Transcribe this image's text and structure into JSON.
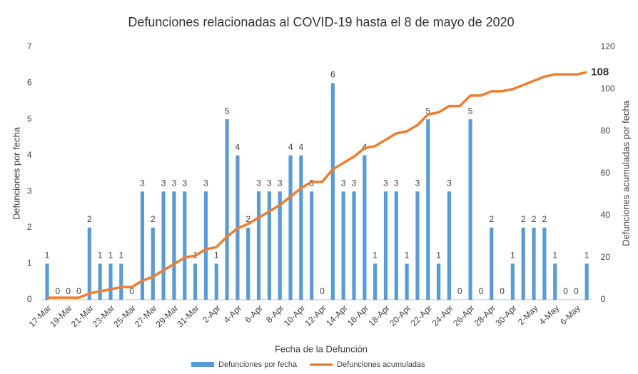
{
  "chart_data": {
    "type": "bar_line",
    "title": "Defunciones relacionadas al COVID-19 hasta el 8 de mayo de 2020",
    "xlabel": "Fecha de la Defunción",
    "ylabel": "Defunciones por fecha",
    "y2label": "Defunciones acumuladas por fecha",
    "categories": [
      "17-Mar",
      null,
      "19-Mar",
      null,
      "21-Mar",
      null,
      "23-Mar",
      null,
      "25-Mar",
      null,
      "27-Mar",
      null,
      "29-Mar",
      null,
      "31-Mar",
      null,
      "2-Apr",
      null,
      "4-Apr",
      null,
      "6-Apr",
      null,
      "8-Apr",
      null,
      "10-Apr",
      null,
      "12-Apr",
      null,
      "14-Apr",
      null,
      "16-Apr",
      null,
      "18-Apr",
      null,
      "20-Apr",
      null,
      "22-Apr",
      null,
      "24-Apr",
      null,
      "26-Apr",
      null,
      "28-Apr",
      null,
      "30-Apr",
      null,
      "2-May",
      null,
      "4-May",
      null,
      "6-May",
      null
    ],
    "series": [
      {
        "name": "Defunciones por fecha",
        "color": "#5b9bd5",
        "kind": "bar",
        "values": [
          1,
          0,
          0,
          0,
          2,
          1,
          1,
          1,
          0,
          3,
          2,
          3,
          3,
          3,
          1,
          3,
          1,
          5,
          4,
          2,
          3,
          3,
          3,
          4,
          4,
          3,
          0,
          6,
          3,
          3,
          4,
          1,
          3,
          3,
          1,
          3,
          5,
          1,
          3,
          0,
          5,
          0,
          2,
          0,
          1,
          2,
          2,
          2,
          1,
          0,
          0,
          1
        ]
      },
      {
        "name": "Defunciones acumuladas",
        "color": "#ed7d31",
        "kind": "line",
        "axis": "y2",
        "values": [
          1,
          1,
          1,
          1,
          3,
          4,
          5,
          6,
          6,
          9,
          11,
          14,
          17,
          20,
          21,
          24,
          25,
          30,
          34,
          36,
          39,
          42,
          45,
          49,
          53,
          56,
          56,
          62,
          65,
          68,
          72,
          73,
          76,
          79,
          80,
          83,
          88,
          89,
          92,
          92,
          97,
          97,
          99,
          99,
          100,
          102,
          104,
          106,
          107,
          107,
          107,
          108
        ]
      }
    ],
    "ylim": [
      0,
      7
    ],
    "yticks": [
      0,
      1,
      2,
      3,
      4,
      5,
      6,
      7
    ],
    "y2lim": [
      0,
      120
    ],
    "y2ticks": [
      0,
      20,
      40,
      60,
      80,
      100,
      120
    ],
    "grid": false,
    "legend": "bottom"
  }
}
